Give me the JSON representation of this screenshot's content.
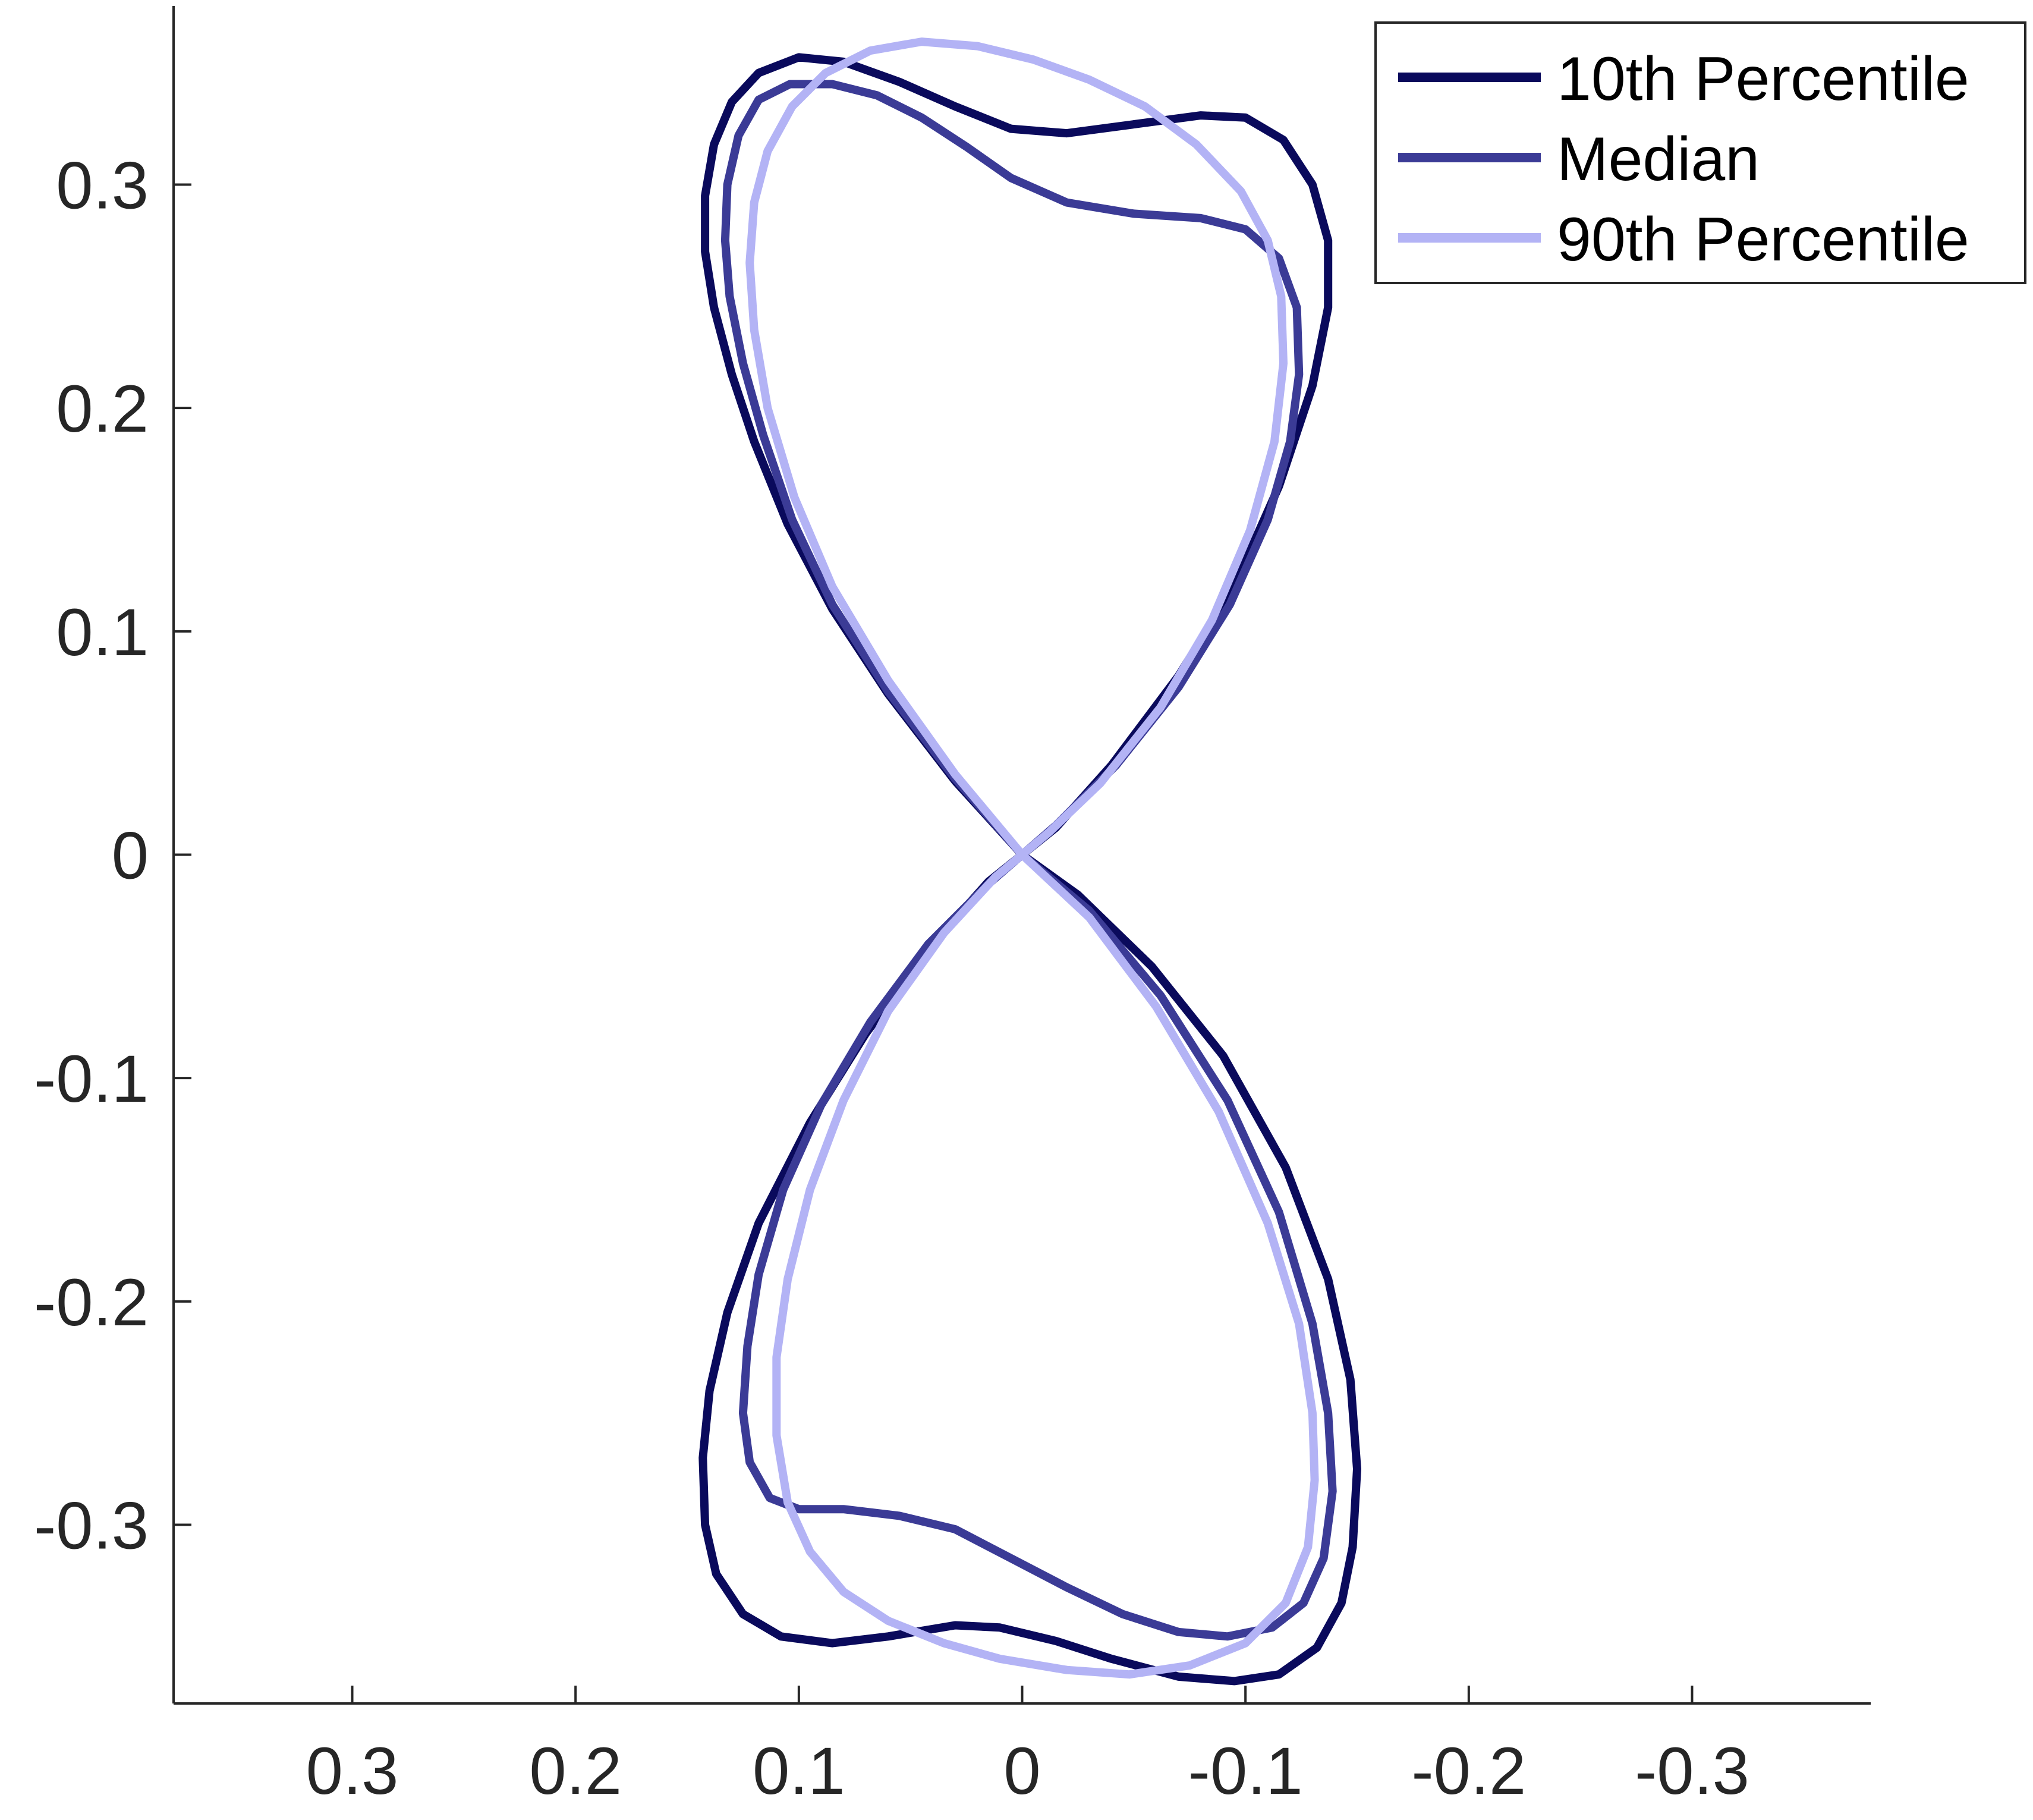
{
  "chart_data": {
    "type": "line",
    "title": "",
    "xlabel": "",
    "ylabel": "",
    "xlim": [
      0.38,
      -0.38
    ],
    "ylim": [
      -0.38,
      0.38
    ],
    "x_reversed": true,
    "grid": false,
    "legend_position": "top-right",
    "x_ticks": [
      0.3,
      0.2,
      0.1,
      0,
      -0.1,
      -0.2,
      -0.3
    ],
    "x_tick_labels": [
      "0.3",
      "0.2",
      "0.1",
      "0",
      "-0.1",
      "-0.2",
      "-0.3"
    ],
    "y_ticks": [
      0.3,
      0.2,
      0.1,
      0,
      -0.1,
      -0.2,
      -0.3
    ],
    "y_tick_labels": [
      "0.3",
      "0.2",
      "0.1",
      "0",
      "-0.1",
      "-0.2",
      "-0.3"
    ],
    "series": [
      {
        "name": "10th Percentile",
        "color": "#0a0a5c",
        "points": [
          [
            0,
            0
          ],
          [
            0.03,
            0.033
          ],
          [
            0.06,
            0.072
          ],
          [
            0.085,
            0.11
          ],
          [
            0.105,
            0.148
          ],
          [
            0.12,
            0.185
          ],
          [
            0.13,
            0.215
          ],
          [
            0.138,
            0.245
          ],
          [
            0.142,
            0.27
          ],
          [
            0.142,
            0.295
          ],
          [
            0.138,
            0.318
          ],
          [
            0.13,
            0.337
          ],
          [
            0.118,
            0.35
          ],
          [
            0.1,
            0.357
          ],
          [
            0.08,
            0.355
          ],
          [
            0.055,
            0.346
          ],
          [
            0.03,
            0.335
          ],
          [
            0.005,
            0.325
          ],
          [
            -0.02,
            0.323
          ],
          [
            -0.05,
            0.327
          ],
          [
            -0.08,
            0.331
          ],
          [
            -0.1,
            0.33
          ],
          [
            -0.117,
            0.32
          ],
          [
            -0.13,
            0.3
          ],
          [
            -0.137,
            0.275
          ],
          [
            -0.137,
            0.245
          ],
          [
            -0.13,
            0.21
          ],
          [
            -0.115,
            0.165
          ],
          [
            -0.095,
            0.12
          ],
          [
            -0.07,
            0.08
          ],
          [
            -0.04,
            0.04
          ],
          [
            -0.015,
            0.012
          ],
          [
            0,
            0
          ],
          [
            0.015,
            -0.012
          ],
          [
            0.04,
            -0.04
          ],
          [
            0.07,
            -0.08
          ],
          [
            0.095,
            -0.12
          ],
          [
            0.118,
            -0.165
          ],
          [
            0.132,
            -0.205
          ],
          [
            0.14,
            -0.24
          ],
          [
            0.143,
            -0.27
          ],
          [
            0.142,
            -0.3
          ],
          [
            0.137,
            -0.322
          ],
          [
            0.125,
            -0.34
          ],
          [
            0.108,
            -0.35
          ],
          [
            0.085,
            -0.353
          ],
          [
            0.06,
            -0.35
          ],
          [
            0.03,
            -0.345
          ],
          [
            0.01,
            -0.346
          ],
          [
            -0.015,
            -0.352
          ],
          [
            -0.04,
            -0.36
          ],
          [
            -0.07,
            -0.368
          ],
          [
            -0.095,
            -0.37
          ],
          [
            -0.115,
            -0.367
          ],
          [
            -0.132,
            -0.355
          ],
          [
            -0.143,
            -0.335
          ],
          [
            -0.148,
            -0.31
          ],
          [
            -0.15,
            -0.275
          ],
          [
            -0.147,
            -0.235
          ],
          [
            -0.137,
            -0.19
          ],
          [
            -0.118,
            -0.14
          ],
          [
            -0.09,
            -0.09
          ],
          [
            -0.058,
            -0.05
          ],
          [
            -0.025,
            -0.018
          ],
          [
            0,
            0
          ]
        ]
      },
      {
        "name": "Median",
        "color": "#3b3b96",
        "points": [
          [
            0,
            0
          ],
          [
            0.03,
            0.034
          ],
          [
            0.06,
            0.073
          ],
          [
            0.085,
            0.112
          ],
          [
            0.103,
            0.15
          ],
          [
            0.116,
            0.188
          ],
          [
            0.125,
            0.22
          ],
          [
            0.131,
            0.25
          ],
          [
            0.133,
            0.275
          ],
          [
            0.132,
            0.3
          ],
          [
            0.127,
            0.322
          ],
          [
            0.118,
            0.338
          ],
          [
            0.104,
            0.345
          ],
          [
            0.085,
            0.345
          ],
          [
            0.065,
            0.34
          ],
          [
            0.045,
            0.33
          ],
          [
            0.025,
            0.317
          ],
          [
            0.005,
            0.303
          ],
          [
            -0.02,
            0.292
          ],
          [
            -0.05,
            0.287
          ],
          [
            -0.08,
            0.285
          ],
          [
            -0.1,
            0.28
          ],
          [
            -0.115,
            0.267
          ],
          [
            -0.123,
            0.245
          ],
          [
            -0.124,
            0.215
          ],
          [
            -0.12,
            0.185
          ],
          [
            -0.11,
            0.15
          ],
          [
            -0.093,
            0.112
          ],
          [
            -0.07,
            0.075
          ],
          [
            -0.042,
            0.04
          ],
          [
            -0.015,
            0.013
          ],
          [
            0,
            0
          ],
          [
            0.015,
            -0.013
          ],
          [
            0.042,
            -0.04
          ],
          [
            0.068,
            -0.075
          ],
          [
            0.09,
            -0.112
          ],
          [
            0.107,
            -0.15
          ],
          [
            0.118,
            -0.188
          ],
          [
            0.123,
            -0.22
          ],
          [
            0.125,
            -0.25
          ],
          [
            0.122,
            -0.272
          ],
          [
            0.113,
            -0.288
          ],
          [
            0.1,
            -0.293
          ],
          [
            0.08,
            -0.293
          ],
          [
            0.055,
            -0.296
          ],
          [
            0.03,
            -0.302
          ],
          [
            0.005,
            -0.315
          ],
          [
            -0.02,
            -0.328
          ],
          [
            -0.045,
            -0.34
          ],
          [
            -0.07,
            -0.348
          ],
          [
            -0.092,
            -0.35
          ],
          [
            -0.112,
            -0.346
          ],
          [
            -0.126,
            -0.335
          ],
          [
            -0.135,
            -0.315
          ],
          [
            -0.139,
            -0.285
          ],
          [
            -0.137,
            -0.25
          ],
          [
            -0.13,
            -0.21
          ],
          [
            -0.115,
            -0.16
          ],
          [
            -0.092,
            -0.11
          ],
          [
            -0.062,
            -0.063
          ],
          [
            -0.03,
            -0.025
          ],
          [
            0,
            0
          ]
        ]
      },
      {
        "name": "90th Percentile",
        "color": "#b3b3f5",
        "points": [
          [
            0,
            0
          ],
          [
            0.03,
            0.036
          ],
          [
            0.06,
            0.078
          ],
          [
            0.085,
            0.12
          ],
          [
            0.102,
            0.16
          ],
          [
            0.114,
            0.2
          ],
          [
            0.12,
            0.235
          ],
          [
            0.122,
            0.265
          ],
          [
            0.12,
            0.292
          ],
          [
            0.114,
            0.315
          ],
          [
            0.103,
            0.335
          ],
          [
            0.088,
            0.35
          ],
          [
            0.068,
            0.36
          ],
          [
            0.045,
            0.364
          ],
          [
            0.02,
            0.362
          ],
          [
            -0.005,
            0.356
          ],
          [
            -0.03,
            0.347
          ],
          [
            -0.055,
            0.335
          ],
          [
            -0.078,
            0.318
          ],
          [
            -0.098,
            0.297
          ],
          [
            -0.11,
            0.275
          ],
          [
            -0.116,
            0.25
          ],
          [
            -0.117,
            0.22
          ],
          [
            -0.113,
            0.185
          ],
          [
            -0.102,
            0.145
          ],
          [
            -0.085,
            0.105
          ],
          [
            -0.062,
            0.066
          ],
          [
            -0.035,
            0.032
          ],
          [
            -0.012,
            0.01
          ],
          [
            0,
            0
          ],
          [
            0.012,
            -0.01
          ],
          [
            0.035,
            -0.035
          ],
          [
            0.06,
            -0.07
          ],
          [
            0.08,
            -0.11
          ],
          [
            0.095,
            -0.15
          ],
          [
            0.105,
            -0.19
          ],
          [
            0.11,
            -0.225
          ],
          [
            0.11,
            -0.26
          ],
          [
            0.105,
            -0.29
          ],
          [
            0.095,
            -0.312
          ],
          [
            0.08,
            -0.33
          ],
          [
            0.06,
            -0.343
          ],
          [
            0.035,
            -0.353
          ],
          [
            0.01,
            -0.36
          ],
          [
            -0.02,
            -0.365
          ],
          [
            -0.048,
            -0.367
          ],
          [
            -0.075,
            -0.363
          ],
          [
            -0.1,
            -0.353
          ],
          [
            -0.118,
            -0.335
          ],
          [
            -0.128,
            -0.31
          ],
          [
            -0.131,
            -0.28
          ],
          [
            -0.13,
            -0.25
          ],
          [
            -0.124,
            -0.21
          ],
          [
            -0.11,
            -0.165
          ],
          [
            -0.088,
            -0.115
          ],
          [
            -0.06,
            -0.068
          ],
          [
            -0.03,
            -0.028
          ],
          [
            0,
            0
          ]
        ]
      }
    ]
  }
}
